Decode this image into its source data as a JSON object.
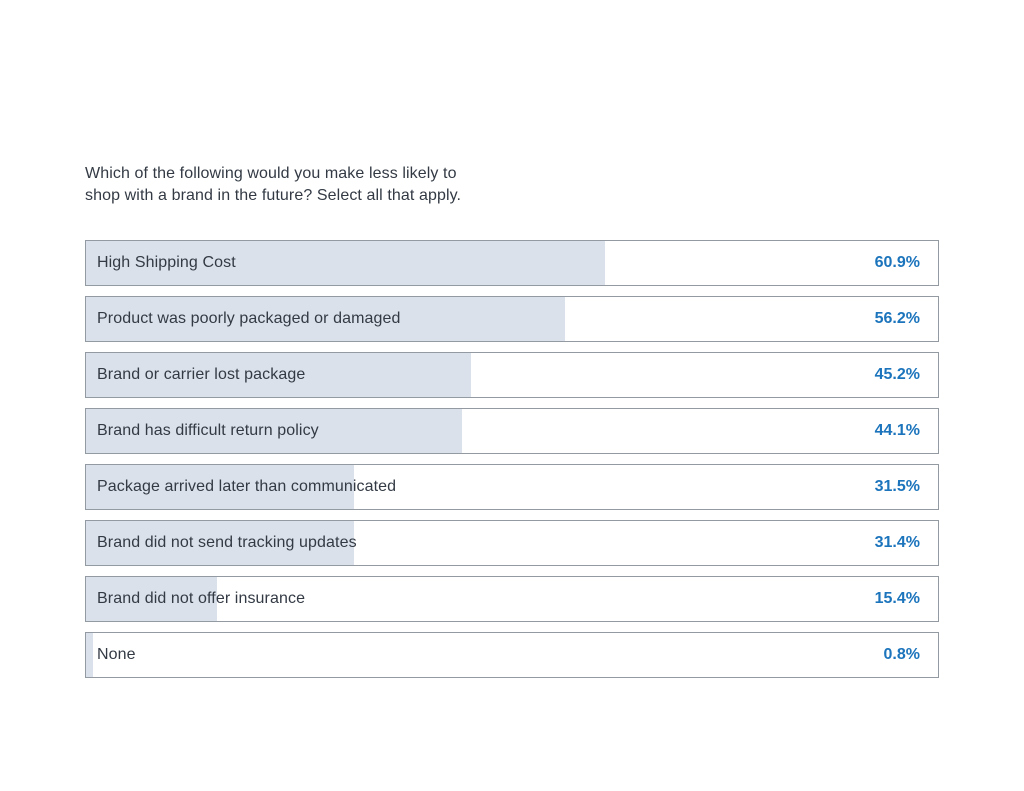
{
  "chart_data": {
    "type": "bar",
    "orientation": "horizontal",
    "title": "Which of the following would you make less likely to\nshop with a brand in the future? Select all that apply.",
    "categories": [
      "High Shipping Cost",
      "Product was poorly packaged or damaged",
      "Brand or carrier lost package",
      "Brand has difficult return policy",
      "Package arrived later than communicated",
      "Brand did not send tracking updates",
      "Brand did not offer insurance",
      "None"
    ],
    "values": [
      60.9,
      56.2,
      45.2,
      44.1,
      31.5,
      31.4,
      15.4,
      0.8
    ],
    "value_labels": [
      "60.9%",
      "56.2%",
      "45.2%",
      "44.1%",
      "31.5%",
      "31.4%",
      "15.4%",
      "0.8%"
    ],
    "xlim": [
      0,
      100
    ],
    "grid": false,
    "legend": false,
    "colors": {
      "bar_fill": "#dbe1ea",
      "bar_border": "#949aa1",
      "value_text": "#1b74bc",
      "label_text": "#333a44",
      "background": "#ffffff"
    }
  }
}
